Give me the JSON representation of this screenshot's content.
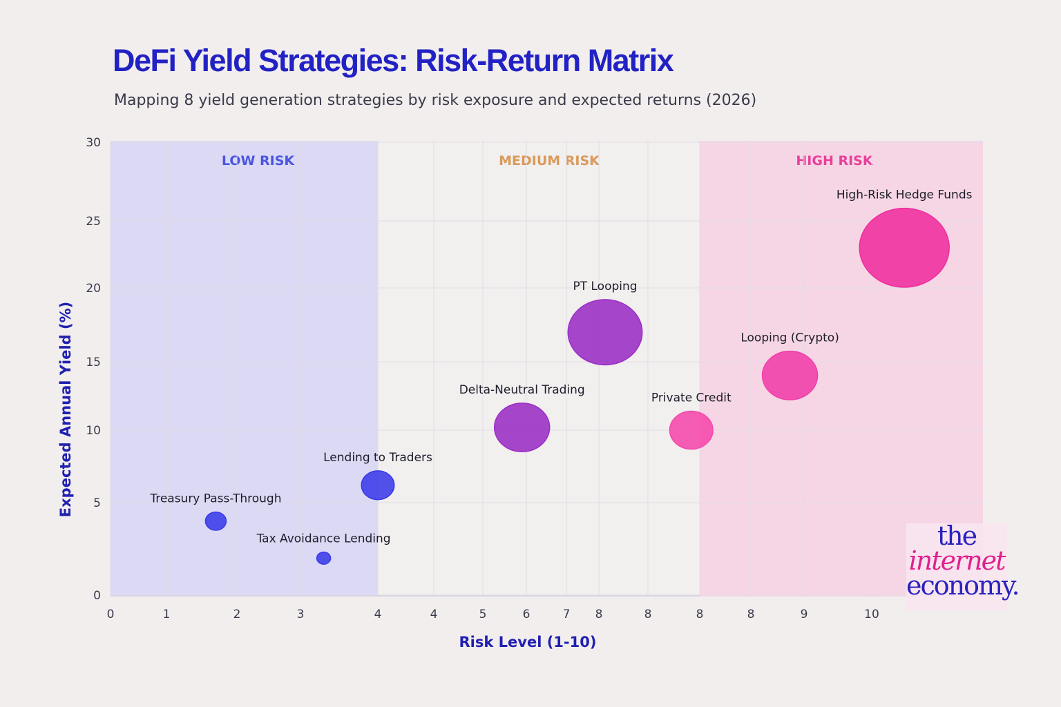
{
  "chart_data": {
    "type": "scatter",
    "title": "DeFi Yield Strategies: Risk-Return Matrix",
    "subtitle": "Mapping 8 yield generation strategies by risk exposure and expected returns (2026)",
    "xlabel": "Risk Level (1-10)",
    "ylabel": "Expected Annual Yield (%)",
    "x_tick_labels": [
      "0",
      "1",
      "2",
      "3",
      "4",
      "4",
      "5",
      "6",
      "7",
      "8",
      "8",
      "8",
      "8",
      "9",
      "10"
    ],
    "y_tick_labels": [
      "0",
      "5",
      "10",
      "15",
      "20",
      "25",
      "30"
    ],
    "ylim": [
      0,
      30
    ],
    "grid": true,
    "bands": [
      {
        "label": "LOW RISK",
        "from": 0,
        "to": 4,
        "color": "#d8d6f4",
        "label_color": "#4a55e0"
      },
      {
        "label": "MEDIUM RISK",
        "from": 4,
        "to": 8,
        "color": "#f2eeee",
        "label_color": "#d99a5a"
      },
      {
        "label": "HIGH RISK",
        "from": 8,
        "to": 11.2,
        "color": "#f6d3e3",
        "label_color": "#e8409a"
      }
    ],
    "points": [
      {
        "name": "Treasury Pass-Through",
        "x": 1.7,
        "y": 4,
        "size": 1.2,
        "color": "#3a3ae8"
      },
      {
        "name": "Tax Avoidance Lending",
        "x": 3.3,
        "y": 2,
        "size": 0.8,
        "color": "#3a3ae8"
      },
      {
        "name": "Lending to Traders",
        "x": 4.0,
        "y": 6.2,
        "size": 1.9,
        "color": "#3a3ae8"
      },
      {
        "name": "Delta-Neutral Trading",
        "x": 5.9,
        "y": 10.2,
        "size": 3.2,
        "color": "#9a2ec4"
      },
      {
        "name": "PT Looping",
        "x": 7.4,
        "y": 17,
        "size": 4.3,
        "color": "#9a2ec4"
      },
      {
        "name": "Private Credit",
        "x": 8.2,
        "y": 10,
        "size": 2.5,
        "color": "#f548ab"
      },
      {
        "name": "Looping (Crypto)",
        "x": 8.9,
        "y": 14,
        "size": 3.2,
        "color": "#f03ea8"
      },
      {
        "name": "High-Risk Hedge Funds",
        "x": 10.4,
        "y": 23,
        "size": 5.2,
        "color": "#f02e9e"
      }
    ]
  },
  "logo": {
    "line1": "the",
    "line2": "internet",
    "line3": "economy.",
    "color1": "#2b22c0",
    "color2": "#e0218f"
  }
}
